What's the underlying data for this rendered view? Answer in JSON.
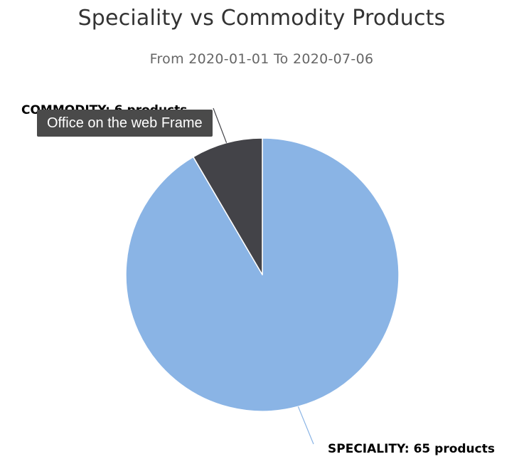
{
  "chart_data": {
    "type": "pie",
    "title": "Speciality vs Commodity Products",
    "subtitle": "From 2020-01-01 To 2020-07-06",
    "slices": [
      {
        "name": "SPECIALITY",
        "value": 65,
        "unit": "products",
        "label": "SPECIALITY: 65 products",
        "color": "#8ab4e5"
      },
      {
        "name": "COMMODITY",
        "value": 6,
        "unit": "products",
        "label": "COMMODITY: 6 products",
        "color": "#434348"
      }
    ]
  },
  "tooltip": {
    "text": "Office on the web Frame"
  }
}
